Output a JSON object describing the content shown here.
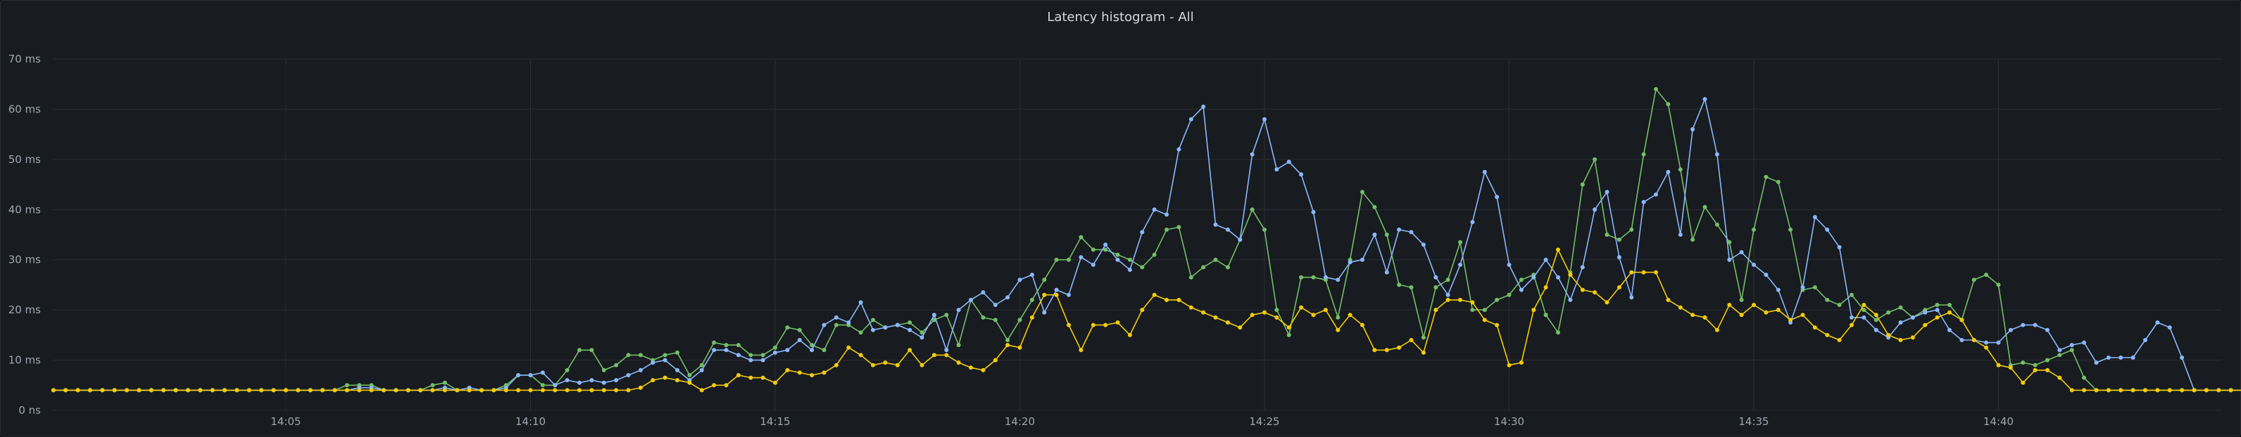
{
  "panel": {
    "title": "Latency histogram - All"
  },
  "colors": {
    "background": "#181b1f",
    "grid": "#2a2d33",
    "text": "#9fa7b3",
    "series": [
      "#73bf69",
      "#8ab8ff",
      "#f2cc0c"
    ]
  },
  "chart_data": {
    "type": "line",
    "title": "Latency histogram - All",
    "xlabel": "",
    "ylabel": "",
    "unit": "ms",
    "xlim": [
      "14:00",
      "14:45"
    ],
    "ylim": [
      0,
      70
    ],
    "y_ticks": [
      "0 ns",
      "10 ms",
      "20 ms",
      "30 ms",
      "40 ms",
      "50 ms",
      "60 ms",
      "70 ms"
    ],
    "x_ticks": [
      "14:05",
      "14:10",
      "14:15",
      "14:20",
      "14:25",
      "14:30",
      "14:35",
      "14:40"
    ],
    "grid": true,
    "legend": "none",
    "time_step_seconds": 15,
    "start_time": "14:00:15",
    "series": [
      {
        "color": "#73bf69",
        "values": [
          4,
          4,
          4,
          4,
          4,
          4,
          4,
          4,
          4,
          4,
          4,
          4,
          4,
          4,
          4,
          4,
          4,
          4,
          4,
          4,
          4,
          4,
          4,
          4,
          5,
          5,
          5,
          4,
          4,
          4,
          4,
          5,
          5.5,
          4,
          4,
          4,
          4,
          5,
          7,
          7,
          5,
          5,
          8,
          12,
          12,
          8,
          9,
          11,
          11,
          10,
          11,
          11.5,
          7,
          9,
          13.5,
          13,
          13,
          11,
          11,
          12.5,
          16.5,
          16,
          13,
          12,
          17,
          17,
          15.5,
          18,
          16.5,
          17,
          17.5,
          15.5,
          18,
          19,
          13,
          22,
          18.5,
          18,
          14,
          18,
          22,
          26,
          30,
          30,
          34.5,
          32,
          32,
          31,
          30,
          28.5,
          31,
          36,
          36.5,
          26.5,
          28.5,
          30,
          28.5,
          34,
          40,
          36,
          20,
          15,
          26.5,
          26.5,
          26,
          18.5,
          30,
          43.5,
          40.5,
          35,
          25,
          24.5,
          14.5,
          24.5,
          26,
          33.5,
          20,
          20,
          22,
          23,
          26,
          27,
          19,
          15.5,
          27.5,
          45,
          50,
          35,
          34,
          36,
          51,
          64,
          61,
          48,
          34,
          40.5,
          37,
          33.5,
          22,
          36,
          46.5,
          45.5,
          36,
          24,
          24.5,
          22,
          21,
          23,
          20,
          18,
          19.5,
          20.5,
          18.5,
          20,
          21,
          21,
          18,
          26,
          27,
          25,
          9,
          9.5,
          9,
          10,
          11,
          12,
          6.5,
          4,
          4,
          4,
          4,
          4,
          4,
          4,
          4,
          4,
          4,
          4,
          4,
          4,
          4,
          4,
          4,
          4
        ]
      },
      {
        "color": "#8ab8ff",
        "values": [
          4,
          4,
          4,
          4,
          4,
          4,
          4,
          4,
          4,
          4,
          4,
          4,
          4,
          4,
          4,
          4,
          4,
          4,
          4,
          4,
          4,
          4,
          4,
          4,
          4,
          4.5,
          4.5,
          4,
          4,
          4,
          4,
          4,
          4.5,
          4,
          4.5,
          4,
          4,
          4.5,
          7,
          7,
          7.5,
          5,
          6,
          5.5,
          6,
          5.5,
          6,
          7,
          8,
          9.5,
          10,
          8,
          6,
          8,
          12,
          12,
          11,
          10,
          10,
          11.5,
          12,
          14,
          12,
          17,
          18.5,
          17.5,
          21.5,
          16,
          16.5,
          17,
          16,
          14.5,
          19,
          12,
          20,
          22,
          23.5,
          21,
          22.5,
          26,
          27,
          19.5,
          24,
          23,
          30.5,
          29,
          33,
          30,
          28,
          35.5,
          40,
          39,
          52,
          58,
          60.5,
          37,
          36,
          34,
          51,
          58,
          48,
          49.5,
          47,
          39.5,
          26.5,
          26,
          29.5,
          30,
          35,
          27.5,
          36,
          35.5,
          33,
          26.5,
          23,
          29,
          37.5,
          47.5,
          42.5,
          29,
          24,
          26.5,
          30,
          26.5,
          22,
          28.5,
          40,
          43.5,
          30.5,
          22.5,
          41.5,
          43,
          47.5,
          35,
          56,
          62,
          51,
          30,
          31.5,
          29,
          27,
          24,
          17.5,
          24.5,
          38.5,
          36,
          32.5,
          18.5,
          18.5,
          16,
          14.5,
          17.5,
          18.5,
          19.5,
          20,
          16,
          14,
          14,
          13.5,
          13.5,
          16,
          17,
          17,
          16,
          12,
          13,
          13.5,
          9.5,
          10.5,
          10.5,
          10.5,
          14,
          17.5,
          16.5,
          10.5,
          4,
          4,
          4,
          4,
          4,
          4,
          4,
          4,
          4,
          4,
          4,
          4,
          4,
          4,
          4
        ]
      },
      {
        "color": "#f2cc0c",
        "values": [
          4,
          4,
          4,
          4,
          4,
          4,
          4,
          4,
          4,
          4,
          4,
          4,
          4,
          4,
          4,
          4,
          4,
          4,
          4,
          4,
          4,
          4,
          4,
          4,
          4,
          4,
          4,
          4,
          4,
          4,
          4,
          4,
          4,
          4,
          4,
          4,
          4,
          4,
          4,
          4,
          4,
          4,
          4,
          4,
          4,
          4,
          4,
          4,
          4.5,
          6,
          6.5,
          6,
          5.5,
          4,
          5,
          5,
          7,
          6.5,
          6.5,
          5.5,
          8,
          7.5,
          7,
          7.5,
          9,
          12.5,
          11,
          9,
          9.5,
          9,
          12,
          9,
          11,
          11,
          9.5,
          8.5,
          8,
          10,
          13,
          12.5,
          18.5,
          23,
          23,
          17,
          12,
          17,
          17,
          17.5,
          15,
          20,
          23,
          22,
          22,
          20.5,
          19.5,
          18.5,
          17.5,
          16.5,
          19,
          19.5,
          18.5,
          16.5,
          20.5,
          19,
          20,
          16,
          19,
          17,
          12,
          12,
          12.5,
          14,
          11.5,
          20,
          22,
          22,
          21.5,
          18,
          17,
          9,
          9.5,
          20,
          24.5,
          32,
          27,
          24,
          23.5,
          21.5,
          24.5,
          27.5,
          27.5,
          27.5,
          22,
          20.5,
          19,
          18.5,
          16,
          21,
          19,
          21,
          19.5,
          20,
          18,
          19,
          16.5,
          15,
          14,
          17,
          21,
          19,
          15,
          14,
          14.5,
          17,
          18.5,
          19.5,
          18,
          14,
          12.5,
          9,
          8.5,
          5.5,
          8,
          8,
          6.5,
          4,
          4,
          4,
          4,
          4,
          4,
          4,
          4,
          4,
          4,
          4,
          4,
          4,
          4,
          4,
          4,
          4
        ]
      }
    ]
  }
}
